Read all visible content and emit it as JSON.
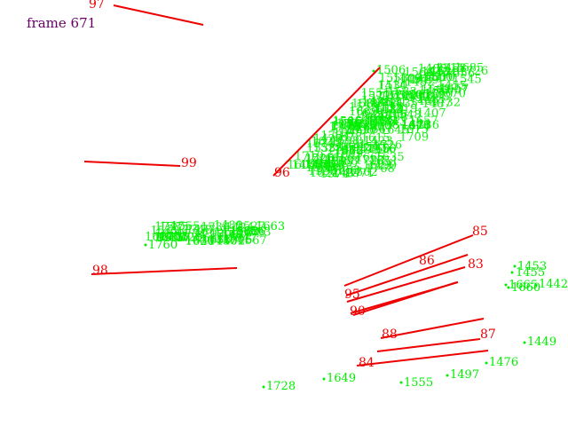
{
  "frame_label": "frame 671",
  "colors": {
    "background": "#ffffff",
    "frame_label": "#660066",
    "segment": "#ee0000",
    "point": "#00ee00"
  },
  "segments": [
    {
      "id": "97"
    },
    {
      "id": "99"
    },
    {
      "id": "98"
    },
    {
      "id": "96"
    },
    {
      "id": "95"
    },
    {
      "id": "86"
    },
    {
      "id": "83"
    },
    {
      "id": "85"
    },
    {
      "id": "90"
    },
    {
      "id": "88"
    },
    {
      "id": "87"
    },
    {
      "id": "84"
    }
  ],
  "points": [
    {
      "id": "1506"
    },
    {
      "id": "1510"
    },
    {
      "id": "1657"
    },
    {
      "id": "1663"
    },
    {
      "id": "1706"
    },
    {
      "id": "1686"
    },
    {
      "id": "1760"
    },
    {
      "id": "1453"
    },
    {
      "id": "1455"
    },
    {
      "id": "1442"
    },
    {
      "id": "1665"
    },
    {
      "id": "1660"
    },
    {
      "id": "1449"
    },
    {
      "id": "1476"
    },
    {
      "id": "1497"
    },
    {
      "id": "1555"
    },
    {
      "id": "1649"
    },
    {
      "id": "1728"
    },
    {
      "id": "1653"
    }
  ]
}
